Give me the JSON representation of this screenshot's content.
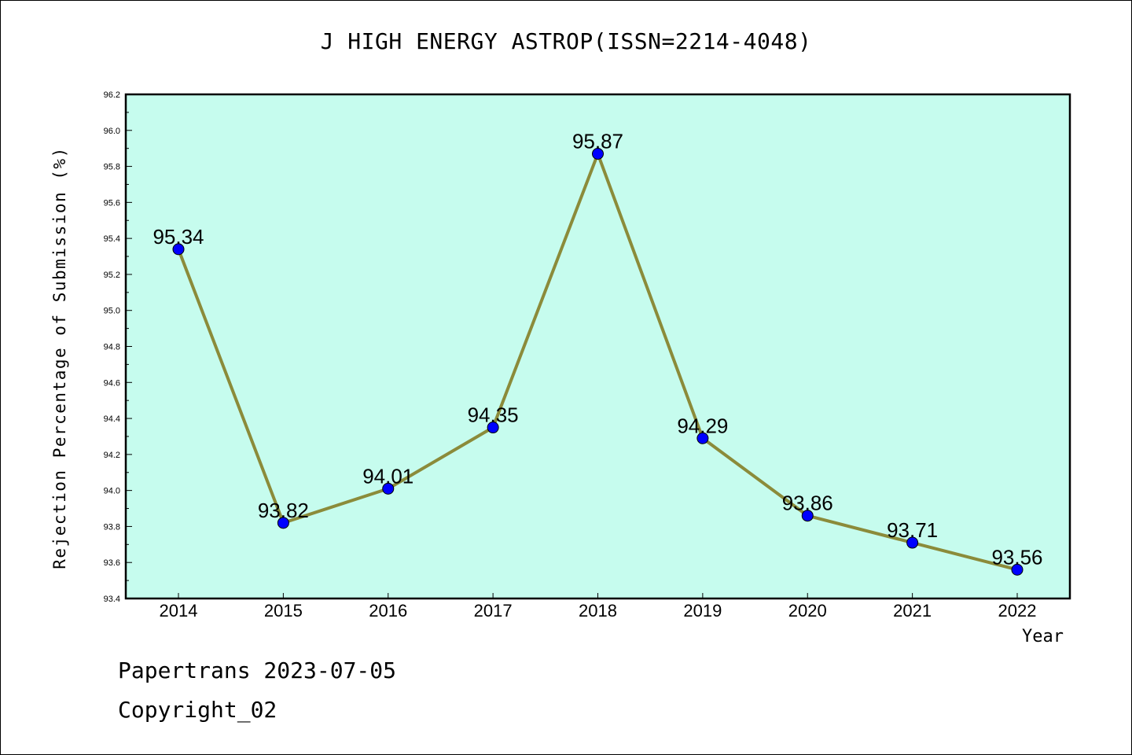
{
  "chart_data": {
    "type": "line",
    "title": "J HIGH ENERGY ASTROP(ISSN=2214-4048)",
    "xlabel": "Year",
    "ylabel": "Rejection Percentage of Submission (%)",
    "categories": [
      "2014",
      "2015",
      "2016",
      "2017",
      "2018",
      "2019",
      "2020",
      "2021",
      "2022"
    ],
    "series": [
      {
        "values": [
          95.34,
          93.82,
          94.01,
          94.35,
          95.87,
          94.29,
          93.86,
          93.71,
          93.56
        ],
        "labels": [
          "95.34",
          "93.82",
          "94.01",
          "94.35",
          "95.87",
          "94.29",
          "93.86",
          "93.71",
          "93.56"
        ]
      }
    ],
    "ylim": [
      93.4,
      96.2
    ],
    "yticks": [
      "93.4",
      "93.6",
      "93.8",
      "94.0",
      "94.2",
      "94.4",
      "94.6",
      "94.8",
      "95.0",
      "95.2",
      "95.4",
      "95.6",
      "95.8",
      "96.0",
      "96.2"
    ],
    "grid": false,
    "colors": {
      "plot_background": "#c6fcee",
      "line": "#8b8b3a",
      "marker": "#0000ff"
    }
  },
  "footer": {
    "source": "Papertrans 2023-07-05",
    "copyright": "Copyright_02"
  }
}
